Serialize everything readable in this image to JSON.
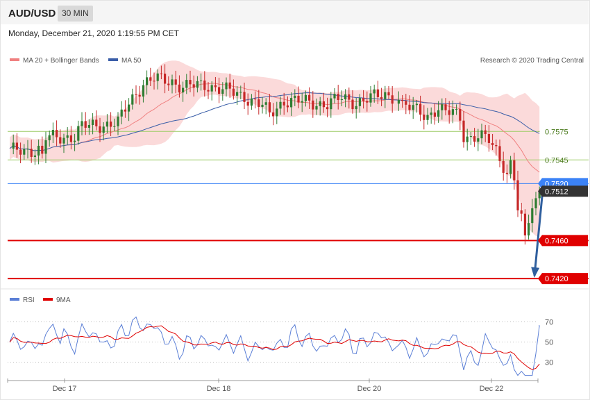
{
  "header": {
    "symbol": "AUD/USD",
    "timeframe": "30 MIN",
    "datetime": "Monday, December 21, 2020 1:19:55 PM CET"
  },
  "legend": {
    "ma20": "MA 20 + Bollinger Bands",
    "ma50": "MA 50",
    "credit": "Research © 2020 Trading Central",
    "rsi": "RSI",
    "rsi_ma": "9MA"
  },
  "colors": {
    "ma20": "#f08080",
    "ma50": "#3a5ea8",
    "band": "#fbd6d6",
    "up": "#2e7d32",
    "down": "#c62828",
    "resistance": "#9ccc65",
    "support": "#e00000",
    "pivot": "#3b82f6",
    "arrow": "#2f5f9e",
    "rsi": "#5b7fd6",
    "rsi_ma": "#e00000"
  },
  "chart_data": [
    {
      "type": "candlestick",
      "title": "AUD/USD",
      "x_ticks": [
        "Dec 17",
        "Dec 18",
        "Dec 20",
        "Dec 22"
      ],
      "ylim": [
        0.7412,
        0.7644
      ],
      "levels": [
        {
          "label": "0.7575",
          "value": 0.7575,
          "kind": "resistance",
          "style": "dotted-right"
        },
        {
          "label": "0.7545",
          "value": 0.7545,
          "kind": "resistance",
          "style": "solid"
        },
        {
          "label": "0.7520",
          "value": 0.752,
          "kind": "pivot",
          "style": "solid"
        },
        {
          "label": "0.7512",
          "value": 0.7512,
          "kind": "last-price",
          "style": "dotted-right"
        },
        {
          "label": "0.7460",
          "value": 0.746,
          "kind": "support",
          "style": "bold"
        },
        {
          "label": "0.7420",
          "value": 0.742,
          "kind": "support",
          "style": "bold"
        }
      ],
      "forecast_arrow": {
        "from": 0.7508,
        "to": 0.742
      }
    },
    {
      "type": "line",
      "title": "RSI",
      "series": [
        {
          "name": "RSI"
        },
        {
          "name": "9MA"
        }
      ],
      "y_ticks": [
        70,
        50,
        30
      ],
      "ylim": [
        14,
        86
      ]
    }
  ]
}
